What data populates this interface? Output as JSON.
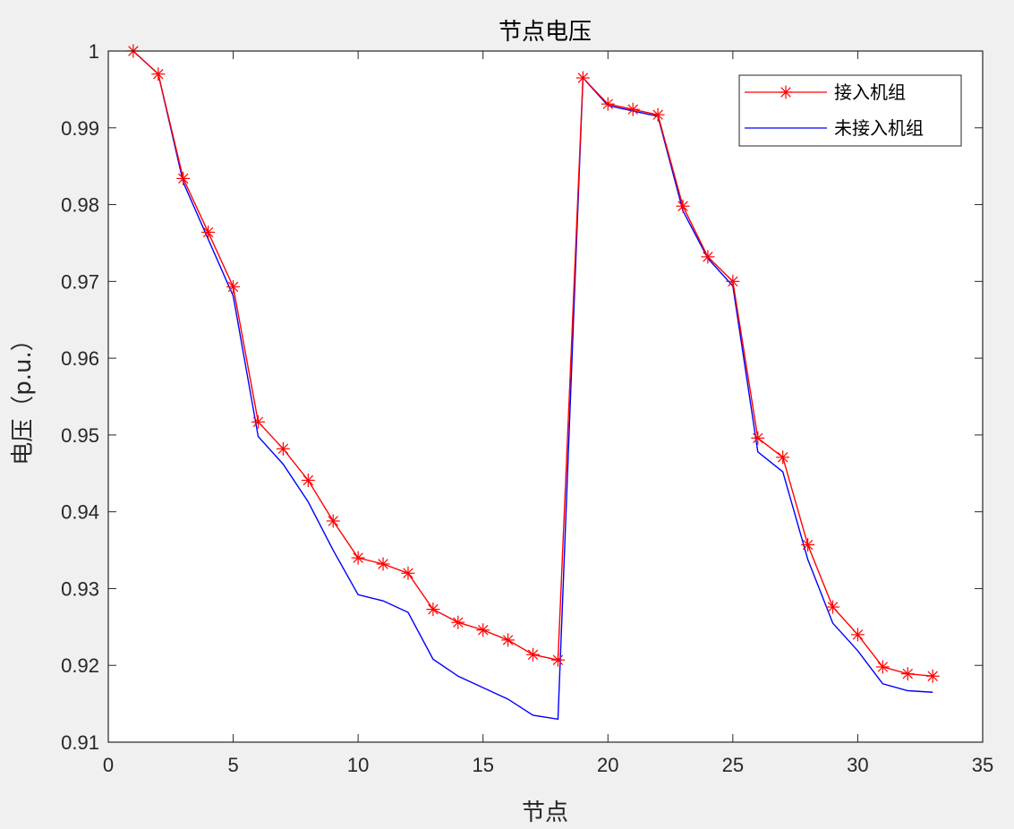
{
  "chart_data": {
    "type": "line",
    "title": "节点电压",
    "xlabel": "节点",
    "ylabel": "电压（p.u.）",
    "xlim": [
      0,
      35
    ],
    "ylim": [
      0.91,
      1.0
    ],
    "x_ticks": [
      0,
      5,
      10,
      15,
      20,
      25,
      30,
      35
    ],
    "x_tick_labels": [
      "0",
      "5",
      "10",
      "15",
      "20",
      "25",
      "30",
      "35"
    ],
    "y_ticks": [
      0.91,
      0.92,
      0.93,
      0.94,
      0.95,
      0.96,
      0.97,
      0.98,
      0.99,
      1.0
    ],
    "y_tick_labels": [
      "0.91",
      "0.92",
      "0.93",
      "0.94",
      "0.95",
      "0.96",
      "0.97",
      "0.98",
      "0.99",
      "1"
    ],
    "grid": false,
    "legend_position": "top-right",
    "x": [
      1,
      2,
      3,
      4,
      5,
      6,
      7,
      8,
      9,
      10,
      11,
      12,
      13,
      14,
      15,
      16,
      17,
      18,
      19,
      20,
      21,
      22,
      23,
      24,
      25,
      26,
      27,
      28,
      29,
      30,
      31,
      32,
      33
    ],
    "series": [
      {
        "name": "接入机组",
        "color": "#ff0000",
        "marker": "asterisk",
        "values": [
          1.0,
          0.997,
          0.9834,
          0.9764,
          0.9693,
          0.9517,
          0.9482,
          0.9441,
          0.9388,
          0.934,
          0.9332,
          0.932,
          0.9273,
          0.9256,
          0.9246,
          0.9233,
          0.9214,
          0.9207,
          0.9965,
          0.9931,
          0.9924,
          0.9917,
          0.9798,
          0.9732,
          0.97,
          0.9496,
          0.9471,
          0.9357,
          0.9276,
          0.924,
          0.9198,
          0.9189,
          0.9186
        ]
      },
      {
        "name": "未接入机组",
        "color": "#0000ff",
        "marker": "none",
        "values": [
          1.0,
          0.997,
          0.9829,
          0.9755,
          0.9681,
          0.9498,
          0.9462,
          0.9413,
          0.935,
          0.9292,
          0.9284,
          0.9269,
          0.9208,
          0.9186,
          0.9171,
          0.9156,
          0.9135,
          0.913,
          0.9965,
          0.9929,
          0.9922,
          0.9915,
          0.9792,
          0.973,
          0.9694,
          0.9478,
          0.9452,
          0.9338,
          0.9255,
          0.9219,
          0.9176,
          0.9167,
          0.9165
        ]
      }
    ]
  }
}
